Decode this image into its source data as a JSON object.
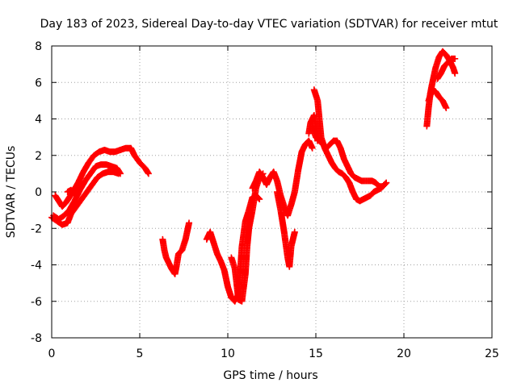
{
  "chart_data": {
    "type": "scatter",
    "title": "Day 183 of 2023, Sidereal Day-to-day VTEC variation (SDTVAR) for receiver mtut",
    "xlabel": "GPS time / hours",
    "ylabel": "SDTVAR / TECUs",
    "xlim": [
      0,
      25
    ],
    "ylim": [
      -8,
      8
    ],
    "x_ticks": [
      "0",
      "5",
      "10",
      "15",
      "20",
      "25"
    ],
    "y_ticks": [
      "-8",
      "-6",
      "-4",
      "-2",
      "0",
      "2",
      "4",
      "6",
      "8"
    ],
    "x_tick_values": [
      0,
      5,
      10,
      15,
      20,
      25
    ],
    "y_tick_values": [
      -8,
      -6,
      -4,
      -2,
      0,
      2,
      4,
      6,
      8
    ],
    "grid": true,
    "marker": "plus",
    "series": [
      {
        "color": "#ff0000",
        "segments": [
          [
            [
              0.0,
              -1.4
            ],
            [
              0.3,
              -1.6
            ],
            [
              0.6,
              -1.8
            ],
            [
              0.9,
              -1.7
            ],
            [
              1.1,
              -1.2
            ],
            [
              1.4,
              -0.8
            ],
            [
              1.7,
              -0.4
            ],
            [
              2.0,
              0.0
            ],
            [
              2.3,
              0.4
            ],
            [
              2.6,
              0.8
            ],
            [
              2.9,
              1.0
            ],
            [
              3.2,
              1.1
            ],
            [
              3.5,
              1.1
            ],
            [
              3.8,
              1.0
            ]
          ],
          [
            [
              0.1,
              -1.3
            ],
            [
              0.4,
              -1.5
            ],
            [
              0.7,
              -1.3
            ],
            [
              1.0,
              -1.0
            ],
            [
              1.3,
              -0.5
            ],
            [
              1.6,
              0.1
            ],
            [
              1.9,
              0.6
            ],
            [
              2.2,
              1.0
            ],
            [
              2.5,
              1.4
            ],
            [
              2.8,
              1.5
            ],
            [
              3.1,
              1.5
            ],
            [
              3.4,
              1.4
            ],
            [
              3.7,
              1.3
            ],
            [
              3.9,
              1.0
            ]
          ],
          [
            [
              0.2,
              -0.2
            ],
            [
              0.4,
              -0.5
            ],
            [
              0.6,
              -0.8
            ],
            [
              0.8,
              -0.6
            ],
            [
              1.0,
              -0.3
            ],
            [
              1.2,
              0.0
            ],
            [
              1.5,
              0.5
            ],
            [
              1.8,
              1.1
            ],
            [
              2.1,
              1.6
            ],
            [
              2.4,
              2.0
            ],
            [
              2.7,
              2.2
            ],
            [
              3.0,
              2.3
            ],
            [
              3.3,
              2.2
            ],
            [
              3.6,
              2.2
            ],
            [
              3.9,
              2.3
            ],
            [
              4.2,
              2.4
            ],
            [
              4.5,
              2.4
            ],
            [
              4.7,
              2.0
            ],
            [
              5.0,
              1.6
            ],
            [
              5.3,
              1.3
            ],
            [
              5.5,
              1.0
            ]
          ],
          [
            [
              0.9,
              0.0
            ],
            [
              1.1,
              0.1
            ],
            [
              1.3,
              -0.1
            ],
            [
              1.5,
              0.1
            ]
          ],
          [
            [
              6.3,
              -2.6
            ],
            [
              6.4,
              -3.2
            ],
            [
              6.5,
              -3.6
            ],
            [
              6.6,
              -3.8
            ],
            [
              6.8,
              -4.2
            ],
            [
              7.0,
              -4.5
            ],
            [
              7.1,
              -4.0
            ],
            [
              7.2,
              -3.4
            ],
            [
              7.4,
              -3.2
            ],
            [
              7.6,
              -2.6
            ],
            [
              7.8,
              -1.7
            ]
          ],
          [
            [
              8.8,
              -2.6
            ],
            [
              9.0,
              -2.2
            ],
            [
              9.2,
              -2.8
            ],
            [
              9.4,
              -3.4
            ],
            [
              9.6,
              -3.8
            ],
            [
              9.8,
              -4.3
            ],
            [
              10.0,
              -5.2
            ],
            [
              10.2,
              -5.8
            ],
            [
              10.4,
              -6.0
            ],
            [
              10.6,
              -5.6
            ],
            [
              10.7,
              -4.5
            ],
            [
              10.8,
              -3.0
            ],
            [
              11.0,
              -1.6
            ],
            [
              11.2,
              -1.0
            ],
            [
              11.4,
              -0.3
            ],
            [
              11.6,
              -0.2
            ],
            [
              11.8,
              -0.4
            ]
          ],
          [
            [
              10.2,
              -3.6
            ],
            [
              10.4,
              -4.2
            ],
            [
              10.5,
              -5.0
            ],
            [
              10.6,
              -5.9
            ],
            [
              10.8,
              -6.0
            ],
            [
              11.0,
              -4.5
            ],
            [
              11.1,
              -3.0
            ],
            [
              11.2,
              -2.0
            ],
            [
              11.4,
              -1.0
            ],
            [
              11.6,
              0.2
            ],
            [
              11.8,
              0.8
            ],
            [
              12.0,
              1.0
            ]
          ],
          [
            [
              11.4,
              0.2
            ],
            [
              11.6,
              0.6
            ],
            [
              11.8,
              1.1
            ],
            [
              12.0,
              0.8
            ],
            [
              12.2,
              0.4
            ],
            [
              12.4,
              0.8
            ],
            [
              12.6,
              1.1
            ],
            [
              12.8,
              0.6
            ],
            [
              13.0,
              -0.2
            ],
            [
              13.2,
              -0.8
            ],
            [
              13.4,
              -1.3
            ],
            [
              13.6,
              -0.7
            ],
            [
              13.8,
              0.0
            ],
            [
              14.0,
              1.2
            ],
            [
              14.2,
              2.2
            ],
            [
              14.4,
              2.6
            ],
            [
              14.6,
              2.8
            ],
            [
              14.8,
              2.4
            ]
          ],
          [
            [
              12.8,
              0.0
            ],
            [
              13.0,
              -1.0
            ],
            [
              13.2,
              -2.2
            ],
            [
              13.4,
              -3.6
            ],
            [
              13.5,
              -4.1
            ],
            [
              13.6,
              -3.0
            ],
            [
              13.8,
              -2.2
            ]
          ],
          [
            [
              14.9,
              5.6
            ],
            [
              15.1,
              5.0
            ],
            [
              15.2,
              4.0
            ],
            [
              15.3,
              3.0
            ],
            [
              15.5,
              2.4
            ],
            [
              15.7,
              2.0
            ],
            [
              15.9,
              1.6
            ],
            [
              16.1,
              1.3
            ],
            [
              16.3,
              1.1
            ],
            [
              16.5,
              1.0
            ],
            [
              16.7,
              0.8
            ],
            [
              16.9,
              0.5
            ],
            [
              17.1,
              0.0
            ],
            [
              17.3,
              -0.4
            ],
            [
              17.5,
              -0.5
            ],
            [
              17.7,
              -0.4
            ],
            [
              17.9,
              -0.3
            ],
            [
              18.1,
              -0.2
            ],
            [
              18.3,
              0.0
            ],
            [
              18.5,
              0.1
            ],
            [
              18.7,
              0.2
            ],
            [
              18.9,
              0.4
            ],
            [
              19.0,
              0.5
            ]
          ],
          [
            [
              14.8,
              3.6
            ],
            [
              15.0,
              3.0
            ],
            [
              15.2,
              2.8
            ],
            [
              15.4,
              2.6
            ],
            [
              15.6,
              2.4
            ],
            [
              15.8,
              2.6
            ],
            [
              16.0,
              2.8
            ],
            [
              16.2,
              2.8
            ],
            [
              16.4,
              2.4
            ],
            [
              16.6,
              1.8
            ],
            [
              16.8,
              1.4
            ],
            [
              17.0,
              1.0
            ],
            [
              17.2,
              0.8
            ],
            [
              17.4,
              0.7
            ],
            [
              17.6,
              0.6
            ],
            [
              17.8,
              0.6
            ],
            [
              18.0,
              0.6
            ],
            [
              18.2,
              0.6
            ],
            [
              18.4,
              0.5
            ],
            [
              18.6,
              0.3
            ],
            [
              18.8,
              0.3
            ],
            [
              19.0,
              0.5
            ]
          ],
          [
            [
              14.6,
              3.2
            ],
            [
              14.7,
              3.8
            ],
            [
              14.9,
              4.2
            ],
            [
              15.0,
              3.6
            ],
            [
              15.1,
              2.8
            ]
          ],
          [
            [
              21.3,
              3.6
            ],
            [
              21.4,
              4.6
            ],
            [
              21.5,
              5.4
            ],
            [
              21.6,
              5.9
            ],
            [
              21.8,
              6.8
            ],
            [
              22.0,
              7.4
            ],
            [
              22.2,
              7.7
            ],
            [
              22.4,
              7.5
            ],
            [
              22.6,
              7.2
            ],
            [
              22.8,
              6.8
            ],
            [
              22.9,
              6.5
            ]
          ],
          [
            [
              21.4,
              5.0
            ],
            [
              21.6,
              5.6
            ],
            [
              21.8,
              5.5
            ],
            [
              22.0,
              5.2
            ],
            [
              22.2,
              5.0
            ],
            [
              22.4,
              4.6
            ]
          ],
          [
            [
              21.9,
              6.2
            ],
            [
              22.1,
              6.5
            ],
            [
              22.3,
              6.9
            ],
            [
              22.5,
              7.1
            ],
            [
              22.7,
              7.3
            ],
            [
              22.9,
              7.3
            ]
          ]
        ]
      }
    ]
  }
}
